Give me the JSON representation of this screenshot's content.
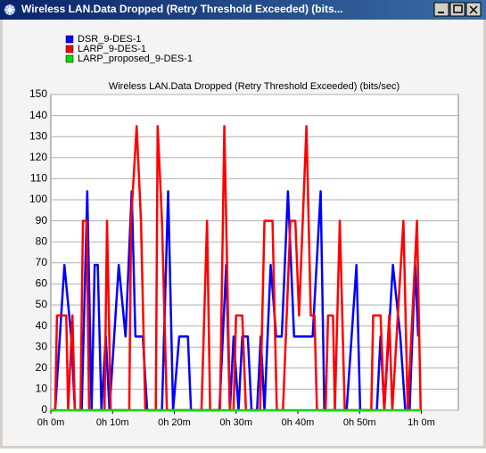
{
  "window_title": "Wireless LAN.Data Dropped (Retry Threshold Exceeded) (bits...",
  "chart_data": {
    "type": "line",
    "title": "Wireless LAN.Data Dropped (Retry Threshold Exceeded) (bits/sec)",
    "xlim": [
      0,
      66
    ],
    "xticks": [
      {
        "value": 0,
        "label": "0h 0m"
      },
      {
        "value": 10,
        "label": "0h 10m"
      },
      {
        "value": 20,
        "label": "0h 20m"
      },
      {
        "value": 30,
        "label": "0h 30m"
      },
      {
        "value": 40,
        "label": "0h 40m"
      },
      {
        "value": 50,
        "label": "0h 50m"
      },
      {
        "value": 60,
        "label": "1h 0m"
      }
    ],
    "ylim": [
      0,
      150
    ],
    "yticks": [
      0,
      10,
      20,
      30,
      40,
      50,
      60,
      70,
      80,
      90,
      100,
      110,
      120,
      130,
      140,
      150
    ],
    "grid": true,
    "legend": "top-left",
    "series": [
      {
        "name": "DSR_9-DES-1",
        "color": "#0000ff",
        "x": [
          0,
          0.7,
          2.2,
          3.3,
          3.9,
          5.0,
          5.9,
          6.6,
          7.1,
          7.6,
          8.2,
          8.9,
          9.5,
          11.0,
          12.1,
          13.1,
          13.7,
          14.9,
          15.6,
          18.0,
          19.0,
          19.8,
          20.8,
          22.2,
          22.7,
          27.3,
          28.4,
          29.0,
          29.6,
          30.4,
          31.0,
          31.9,
          32.5,
          33.4,
          34.0,
          34.6,
          35.6,
          36.5,
          37.4,
          38.4,
          39.4,
          42.4,
          43.7,
          44.3,
          47.9,
          49.5,
          50.1,
          52.8,
          53.4,
          54.0,
          55.4,
          56.6,
          57.4,
          58.1,
          59.0,
          59.5
        ],
        "values": [
          0,
          0,
          69,
          35,
          0,
          0,
          104,
          0,
          69,
          69,
          0,
          35,
          0,
          69,
          35,
          104,
          35,
          35,
          0,
          0,
          104,
          0,
          35,
          35,
          0,
          0,
          69,
          0,
          35,
          0,
          35,
          35,
          0,
          0,
          35,
          0,
          69,
          35,
          35,
          104,
          35,
          35,
          104,
          0,
          0,
          69,
          0,
          0,
          35,
          0,
          69,
          35,
          0,
          0,
          69,
          35
        ]
      },
      {
        "name": "LARP_9-DES-1",
        "color": "#ff0000",
        "x": [
          0,
          0.7,
          1.0,
          2.5,
          2.8,
          3.5,
          3.9,
          4.8,
          5.2,
          5.8,
          6.2,
          8.7,
          9.1,
          9.7,
          12.7,
          13.0,
          13.9,
          14.6,
          15.3,
          17.0,
          17.3,
          18.0,
          18.8,
          24.4,
          25.3,
          25.8,
          27.4,
          28.1,
          29.0,
          29.6,
          30.0,
          31.0,
          31.6,
          33.9,
          34.6,
          35.9,
          36.6,
          37.6,
          38.8,
          39.6,
          40.2,
          41.4,
          42.1,
          42.7,
          43.1,
          44.5,
          44.9,
          45.7,
          46.0,
          46.8,
          47.6,
          51.9,
          52.2,
          53.4,
          54.0,
          54.8,
          55.3,
          57.1,
          57.8,
          59.3,
          59.9
        ],
        "values": [
          0,
          0,
          45,
          45,
          0,
          45,
          0,
          0,
          90,
          90,
          0,
          0,
          90,
          0,
          0,
          90,
          135,
          90,
          0,
          0,
          135,
          90,
          0,
          0,
          90,
          0,
          0,
          135,
          0,
          0,
          45,
          45,
          0,
          0,
          90,
          90,
          0,
          0,
          90,
          90,
          45,
          135,
          45,
          45,
          0,
          0,
          45,
          45,
          0,
          90,
          0,
          0,
          45,
          45,
          0,
          45,
          0,
          90,
          0,
          90,
          0
        ]
      },
      {
        "name": "LARP_proposed_9-DES-1",
        "color": "#00dd00",
        "x": [
          0,
          60
        ],
        "values": [
          0,
          0
        ]
      }
    ]
  }
}
